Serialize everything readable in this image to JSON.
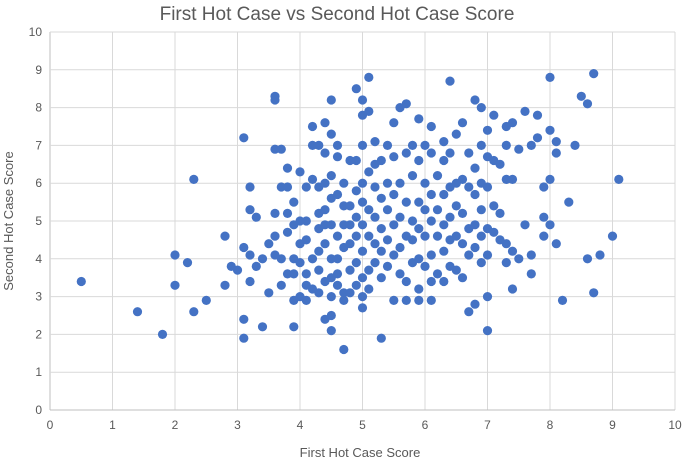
{
  "chart_data": {
    "type": "scatter",
    "title": "First Hot Case vs Second Hot Case Score",
    "xlabel": "First Hot Case Score",
    "ylabel": "Second Hot Case Score",
    "xlim": [
      0,
      10
    ],
    "ylim": [
      0,
      10
    ],
    "xticks": [
      "0",
      "1",
      "2",
      "3",
      "4",
      "5",
      "6",
      "7",
      "8",
      "9",
      "10"
    ],
    "yticks": [
      "0",
      "1",
      "2",
      "3",
      "4",
      "5",
      "6",
      "7",
      "8",
      "9",
      "10"
    ],
    "grid": true,
    "legend": "none",
    "marker_color": "#4472c4",
    "points": [
      [
        0.5,
        3.4
      ],
      [
        1.4,
        2.6
      ],
      [
        1.8,
        2.0
      ],
      [
        2.0,
        4.1
      ],
      [
        2.0,
        3.3
      ],
      [
        2.2,
        3.9
      ],
      [
        2.3,
        6.1
      ],
      [
        2.3,
        2.6
      ],
      [
        2.5,
        2.9
      ],
      [
        2.8,
        4.6
      ],
      [
        2.8,
        3.3
      ],
      [
        2.9,
        3.8
      ],
      [
        3.0,
        3.7
      ],
      [
        3.1,
        7.2
      ],
      [
        3.1,
        4.3
      ],
      [
        3.1,
        2.4
      ],
      [
        3.1,
        1.9
      ],
      [
        3.2,
        5.9
      ],
      [
        3.2,
        5.3
      ],
      [
        3.2,
        4.1
      ],
      [
        3.2,
        3.4
      ],
      [
        3.3,
        5.1
      ],
      [
        3.3,
        3.8
      ],
      [
        3.4,
        2.2
      ],
      [
        3.4,
        4.0
      ],
      [
        3.5,
        3.1
      ],
      [
        3.5,
        4.4
      ],
      [
        3.6,
        8.3
      ],
      [
        3.6,
        8.2
      ],
      [
        3.6,
        6.9
      ],
      [
        3.6,
        5.2
      ],
      [
        3.6,
        4.6
      ],
      [
        3.6,
        4.1
      ],
      [
        3.7,
        6.9
      ],
      [
        3.7,
        5.9
      ],
      [
        3.7,
        4.0
      ],
      [
        3.7,
        3.3
      ],
      [
        3.8,
        5.2
      ],
      [
        3.8,
        5.9
      ],
      [
        3.8,
        4.7
      ],
      [
        3.8,
        3.6
      ],
      [
        3.8,
        6.4
      ],
      [
        3.9,
        5.5
      ],
      [
        3.9,
        4.9
      ],
      [
        3.9,
        4.0
      ],
      [
        3.9,
        3.6
      ],
      [
        3.9,
        2.9
      ],
      [
        3.9,
        2.2
      ],
      [
        4.0,
        6.3
      ],
      [
        4.0,
        5.0
      ],
      [
        4.0,
        4.4
      ],
      [
        4.0,
        3.9
      ],
      [
        4.0,
        3.0
      ],
      [
        4.1,
        5.9
      ],
      [
        4.1,
        5.0
      ],
      [
        4.1,
        4.5
      ],
      [
        4.1,
        3.6
      ],
      [
        4.1,
        3.3
      ],
      [
        4.1,
        2.9
      ],
      [
        4.2,
        7.5
      ],
      [
        4.2,
        7.0
      ],
      [
        4.2,
        6.1
      ],
      [
        4.2,
        4.0
      ],
      [
        4.2,
        3.2
      ],
      [
        4.3,
        7.0
      ],
      [
        4.3,
        5.9
      ],
      [
        4.3,
        5.2
      ],
      [
        4.3,
        4.8
      ],
      [
        4.3,
        4.2
      ],
      [
        4.3,
        3.7
      ],
      [
        4.3,
        3.1
      ],
      [
        4.4,
        6.8
      ],
      [
        4.4,
        6.0
      ],
      [
        4.4,
        5.3
      ],
      [
        4.4,
        4.9
      ],
      [
        4.4,
        4.4
      ],
      [
        4.4,
        3.4
      ],
      [
        4.4,
        2.4
      ],
      [
        4.4,
        7.6
      ],
      [
        4.5,
        8.2
      ],
      [
        4.5,
        7.3
      ],
      [
        4.5,
        6.2
      ],
      [
        4.5,
        5.6
      ],
      [
        4.5,
        4.9
      ],
      [
        4.5,
        4.0
      ],
      [
        4.5,
        3.5
      ],
      [
        4.5,
        3.0
      ],
      [
        4.5,
        2.5
      ],
      [
        4.5,
        2.1
      ],
      [
        4.6,
        7.0
      ],
      [
        4.6,
        6.7
      ],
      [
        4.6,
        5.7
      ],
      [
        4.6,
        4.6
      ],
      [
        4.6,
        4.0
      ],
      [
        4.6,
        3.3
      ],
      [
        4.6,
        3.6
      ],
      [
        4.7,
        6.0
      ],
      [
        4.7,
        5.4
      ],
      [
        4.7,
        4.9
      ],
      [
        4.7,
        4.3
      ],
      [
        4.7,
        3.1
      ],
      [
        4.7,
        2.9
      ],
      [
        4.7,
        1.6
      ],
      [
        4.8,
        6.6
      ],
      [
        4.8,
        5.4
      ],
      [
        4.8,
        4.9
      ],
      [
        4.8,
        4.4
      ],
      [
        4.8,
        3.7
      ],
      [
        4.8,
        3.1
      ],
      [
        4.9,
        8.5
      ],
      [
        4.9,
        6.6
      ],
      [
        4.9,
        5.8
      ],
      [
        4.9,
        5.1
      ],
      [
        4.9,
        4.6
      ],
      [
        4.9,
        3.9
      ],
      [
        4.9,
        3.3
      ],
      [
        5.0,
        8.2
      ],
      [
        5.0,
        7.8
      ],
      [
        5.0,
        7.0
      ],
      [
        5.0,
        6.0
      ],
      [
        5.0,
        5.5
      ],
      [
        5.0,
        4.9
      ],
      [
        5.0,
        4.2
      ],
      [
        5.0,
        3.5
      ],
      [
        5.0,
        3.0
      ],
      [
        5.0,
        2.7
      ],
      [
        5.1,
        8.8
      ],
      [
        5.1,
        7.9
      ],
      [
        5.1,
        6.3
      ],
      [
        5.1,
        5.3
      ],
      [
        5.1,
        4.6
      ],
      [
        5.1,
        3.7
      ],
      [
        5.1,
        3.2
      ],
      [
        5.2,
        7.1
      ],
      [
        5.2,
        6.5
      ],
      [
        5.2,
        5.9
      ],
      [
        5.2,
        5.1
      ],
      [
        5.2,
        4.4
      ],
      [
        5.2,
        3.9
      ],
      [
        5.3,
        6.6
      ],
      [
        5.3,
        5.6
      ],
      [
        5.3,
        4.8
      ],
      [
        5.3,
        4.2
      ],
      [
        5.3,
        3.5
      ],
      [
        5.3,
        1.9
      ],
      [
        5.4,
        7.0
      ],
      [
        5.4,
        6.0
      ],
      [
        5.4,
        5.3
      ],
      [
        5.4,
        4.5
      ],
      [
        5.4,
        3.8
      ],
      [
        5.5,
        7.6
      ],
      [
        5.5,
        6.7
      ],
      [
        5.5,
        5.7
      ],
      [
        5.5,
        4.9
      ],
      [
        5.5,
        4.1
      ],
      [
        5.5,
        2.9
      ],
      [
        5.6,
        8.0
      ],
      [
        5.6,
        6.0
      ],
      [
        5.6,
        5.1
      ],
      [
        5.6,
        4.3
      ],
      [
        5.6,
        3.6
      ],
      [
        5.7,
        8.1
      ],
      [
        5.7,
        6.8
      ],
      [
        5.7,
        5.5
      ],
      [
        5.7,
        4.6
      ],
      [
        5.7,
        3.4
      ],
      [
        5.7,
        2.9
      ],
      [
        5.8,
        7.0
      ],
      [
        5.8,
        6.2
      ],
      [
        5.8,
        5.0
      ],
      [
        5.8,
        4.5
      ],
      [
        5.8,
        3.9
      ],
      [
        5.9,
        7.7
      ],
      [
        5.9,
        6.6
      ],
      [
        5.9,
        5.5
      ],
      [
        5.9,
        4.8
      ],
      [
        5.9,
        4.0
      ],
      [
        5.9,
        3.2
      ],
      [
        5.9,
        2.9
      ],
      [
        6.0,
        7.0
      ],
      [
        6.0,
        6.0
      ],
      [
        6.0,
        5.3
      ],
      [
        6.0,
        4.6
      ],
      [
        6.0,
        3.8
      ],
      [
        6.1,
        7.5
      ],
      [
        6.1,
        6.8
      ],
      [
        6.1,
        5.7
      ],
      [
        6.1,
        5.0
      ],
      [
        6.1,
        4.1
      ],
      [
        6.1,
        3.4
      ],
      [
        6.1,
        2.9
      ],
      [
        6.2,
        6.2
      ],
      [
        6.2,
        5.3
      ],
      [
        6.2,
        4.6
      ],
      [
        6.2,
        3.6
      ],
      [
        6.3,
        7.1
      ],
      [
        6.3,
        6.6
      ],
      [
        6.3,
        5.7
      ],
      [
        6.3,
        4.9
      ],
      [
        6.3,
        4.2
      ],
      [
        6.3,
        3.4
      ],
      [
        6.4,
        8.7
      ],
      [
        6.4,
        6.8
      ],
      [
        6.4,
        5.9
      ],
      [
        6.4,
        5.1
      ],
      [
        6.4,
        4.5
      ],
      [
        6.4,
        3.8
      ],
      [
        6.5,
        7.3
      ],
      [
        6.5,
        6.0
      ],
      [
        6.5,
        5.4
      ],
      [
        6.5,
        4.6
      ],
      [
        6.5,
        3.7
      ],
      [
        6.6,
        7.6
      ],
      [
        6.6,
        6.1
      ],
      [
        6.6,
        5.2
      ],
      [
        6.6,
        4.4
      ],
      [
        6.6,
        3.5
      ],
      [
        6.7,
        6.8
      ],
      [
        6.7,
        5.9
      ],
      [
        6.7,
        4.8
      ],
      [
        6.7,
        4.1
      ],
      [
        6.7,
        2.6
      ],
      [
        6.8,
        8.2
      ],
      [
        6.8,
        6.4
      ],
      [
        6.8,
        5.7
      ],
      [
        6.8,
        4.9
      ],
      [
        6.8,
        4.3
      ],
      [
        6.8,
        2.8
      ],
      [
        6.9,
        8.0
      ],
      [
        6.9,
        7.0
      ],
      [
        6.9,
        6.0
      ],
      [
        6.9,
        5.3
      ],
      [
        6.9,
        4.6
      ],
      [
        6.9,
        3.9
      ],
      [
        7.0,
        7.4
      ],
      [
        7.0,
        6.7
      ],
      [
        7.0,
        5.9
      ],
      [
        7.0,
        4.8
      ],
      [
        7.0,
        4.1
      ],
      [
        7.0,
        3.0
      ],
      [
        7.0,
        2.1
      ],
      [
        7.1,
        7.8
      ],
      [
        7.1,
        6.6
      ],
      [
        7.1,
        5.4
      ],
      [
        7.1,
        4.7
      ],
      [
        7.2,
        6.5
      ],
      [
        7.2,
        5.2
      ],
      [
        7.2,
        4.5
      ],
      [
        7.3,
        7.5
      ],
      [
        7.3,
        7.0
      ],
      [
        7.3,
        6.1
      ],
      [
        7.3,
        4.4
      ],
      [
        7.3,
        3.9
      ],
      [
        7.4,
        7.6
      ],
      [
        7.4,
        6.1
      ],
      [
        7.4,
        4.2
      ],
      [
        7.4,
        3.2
      ],
      [
        7.5,
        6.9
      ],
      [
        7.5,
        4.0
      ],
      [
        7.6,
        7.9
      ],
      [
        7.6,
        4.9
      ],
      [
        7.7,
        7.0
      ],
      [
        7.7,
        4.1
      ],
      [
        7.7,
        3.6
      ],
      [
        7.8,
        7.8
      ],
      [
        7.8,
        7.2
      ],
      [
        7.9,
        5.1
      ],
      [
        7.9,
        4.6
      ],
      [
        7.9,
        5.9
      ],
      [
        8.0,
        8.8
      ],
      [
        8.0,
        7.4
      ],
      [
        8.0,
        6.1
      ],
      [
        8.0,
        4.9
      ],
      [
        8.1,
        7.1
      ],
      [
        8.1,
        6.8
      ],
      [
        8.1,
        4.4
      ],
      [
        8.2,
        2.9
      ],
      [
        8.3,
        5.5
      ],
      [
        8.4,
        7.0
      ],
      [
        8.5,
        8.3
      ],
      [
        8.6,
        8.1
      ],
      [
        8.6,
        4.0
      ],
      [
        8.7,
        8.9
      ],
      [
        8.7,
        3.1
      ],
      [
        8.8,
        4.1
      ],
      [
        9.0,
        4.6
      ],
      [
        9.1,
        6.1
      ]
    ]
  }
}
